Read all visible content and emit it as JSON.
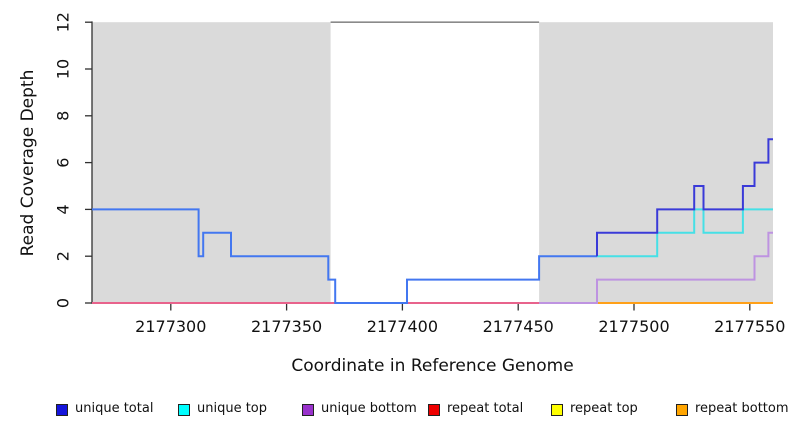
{
  "chart_data": {
    "type": "line",
    "title": "",
    "xlabel": "Coordinate in Reference Genome",
    "ylabel": "Read Coverage Depth",
    "xlim": [
      2177266,
      2177560
    ],
    "ylim": [
      0,
      12
    ],
    "x_ticks": [
      2177300,
      2177350,
      2177400,
      2177450,
      2177500,
      2177550
    ],
    "y_ticks": [
      0,
      2,
      4,
      6,
      8,
      10,
      12
    ],
    "grid": false,
    "legend_position": "bottom",
    "plot_style": "step",
    "shaded_regions": [
      {
        "from": 2177266,
        "to": 2177369,
        "color": "#DADADA"
      },
      {
        "from": 2177459,
        "to": 2177560,
        "color": "#DADADA"
      }
    ],
    "top_boundary_line": {
      "from": 2177369,
      "to": 2177459,
      "y": 12,
      "color": "#8A8A8A"
    },
    "series": [
      {
        "name": "repeat total",
        "color": "#E8638C",
        "steps": [
          [
            2177266,
            0
          ]
        ],
        "end": 2177560
      },
      {
        "name": "repeat bottom",
        "color": "#FFA018",
        "steps": [
          [
            2177484,
            0
          ]
        ],
        "end": 2177560
      },
      {
        "name": "unique bottom",
        "color": "#BE93E1",
        "steps": [
          [
            2177459,
            0
          ],
          [
            2177484,
            1
          ],
          [
            2177552,
            2
          ],
          [
            2177558,
            3
          ]
        ],
        "end": 2177560
      },
      {
        "name": "unique top",
        "color": "#45E0E6",
        "steps": [
          [
            2177484,
            2
          ],
          [
            2177510,
            3
          ],
          [
            2177526,
            4
          ],
          [
            2177530,
            3
          ],
          [
            2177547,
            4
          ]
        ],
        "end": 2177560
      },
      {
        "name": "unique total",
        "segment": "left",
        "color": "#4377F0",
        "steps": [
          [
            2177266,
            4
          ],
          [
            2177312,
            2
          ],
          [
            2177314,
            3
          ],
          [
            2177326,
            2
          ],
          [
            2177368,
            1
          ],
          [
            2177371,
            0
          ],
          [
            2177402,
            1
          ],
          [
            2177459,
            2
          ]
        ],
        "end": 2177484
      },
      {
        "name": "unique total",
        "segment": "right",
        "color": "#3A3AD8",
        "steps": [
          [
            2177484,
            2
          ],
          [
            2177484,
            3
          ],
          [
            2177510,
            4
          ],
          [
            2177526,
            5
          ],
          [
            2177530,
            4
          ],
          [
            2177547,
            5
          ],
          [
            2177552,
            6
          ],
          [
            2177558,
            7
          ]
        ],
        "end": 2177560
      }
    ],
    "legend": [
      {
        "label": "unique total",
        "color": "#1515DC"
      },
      {
        "label": "unique top",
        "color": "#00FFFF"
      },
      {
        "label": "unique bottom",
        "color": "#9932CC"
      },
      {
        "label": "repeat total",
        "color": "#EE0000"
      },
      {
        "label": "repeat top",
        "color": "#FFFF00"
      },
      {
        "label": "repeat bottom",
        "color": "#FFA500"
      }
    ]
  }
}
